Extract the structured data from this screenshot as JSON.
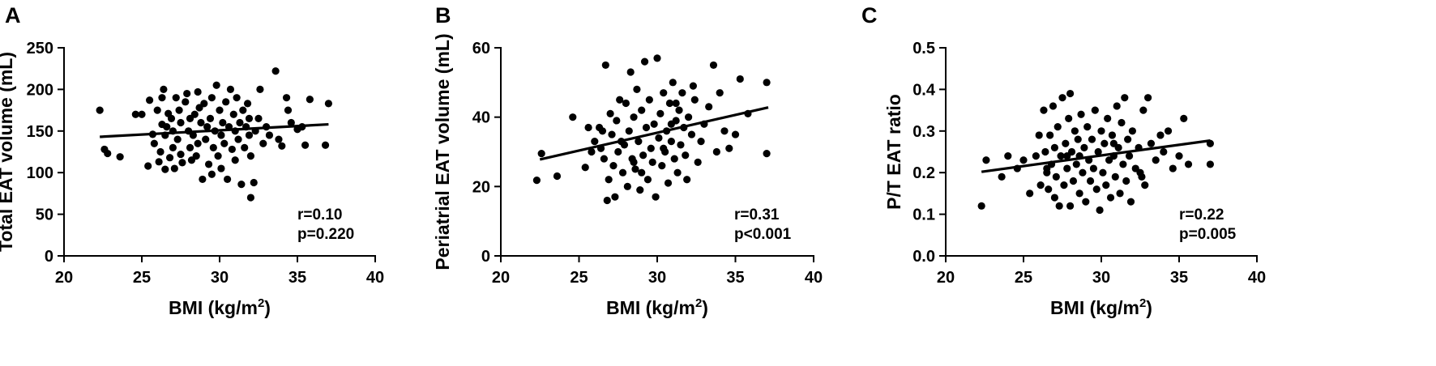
{
  "chart_data": [
    {
      "type": "scatter",
      "panel": "A",
      "xlabel": "BMI (kg/m",
      "xlabel_sup": "2",
      "xlabel_close": ")",
      "ylabel": "Total EAT volume (mL)",
      "xlim": [
        20,
        40
      ],
      "ylim": [
        0,
        250
      ],
      "xticks": [
        "20",
        "25",
        "30",
        "35",
        "40"
      ],
      "yticks": [
        "0",
        "50",
        "100",
        "150",
        "200",
        "250"
      ],
      "stats": [
        "r=0.10",
        "p=0.220"
      ],
      "fit": {
        "x1": 22.3,
        "y1": 143,
        "x2": 37.0,
        "y2": 158
      },
      "points": [
        [
          22.3,
          175
        ],
        [
          22.6,
          128
        ],
        [
          22.8,
          123
        ],
        [
          23.6,
          119
        ],
        [
          24.6,
          170
        ],
        [
          25.0,
          170
        ],
        [
          25.4,
          108
        ],
        [
          25.5,
          187
        ],
        [
          25.7,
          146
        ],
        [
          25.8,
          135
        ],
        [
          26.0,
          175
        ],
        [
          26.1,
          113
        ],
        [
          26.3,
          158
        ],
        [
          26.3,
          190
        ],
        [
          26.4,
          200
        ],
        [
          26.5,
          104
        ],
        [
          26.5,
          145
        ],
        [
          26.6,
          155
        ],
        [
          26.7,
          171
        ],
        [
          26.8,
          118
        ],
        [
          26.9,
          165
        ],
        [
          27.0,
          130
        ],
        [
          27.0,
          150
        ],
        [
          27.1,
          105
        ],
        [
          27.2,
          190
        ],
        [
          27.3,
          140
        ],
        [
          27.4,
          175
        ],
        [
          27.5,
          122
        ],
        [
          27.5,
          160
        ],
        [
          27.6,
          112
        ],
        [
          27.8,
          185
        ],
        [
          27.9,
          195
        ],
        [
          28.0,
          150
        ],
        [
          28.1,
          130
        ],
        [
          28.1,
          165
        ],
        [
          28.2,
          115
        ],
        [
          28.3,
          145
        ],
        [
          28.4,
          170
        ],
        [
          28.5,
          120
        ],
        [
          28.6,
          197
        ],
        [
          28.6,
          135
        ],
        [
          28.8,
          160
        ],
        [
          28.9,
          92
        ],
        [
          29.0,
          183
        ],
        [
          29.1,
          140
        ],
        [
          29.2,
          155
        ],
        [
          29.3,
          110
        ],
        [
          29.4,
          165
        ],
        [
          29.5,
          98
        ],
        [
          29.5,
          190
        ],
        [
          29.6,
          130
        ],
        [
          29.7,
          150
        ],
        [
          29.8,
          205
        ],
        [
          29.9,
          120
        ],
        [
          30.0,
          175
        ],
        [
          30.1,
          105
        ],
        [
          30.1,
          145
        ],
        [
          30.2,
          160
        ],
        [
          30.3,
          135
        ],
        [
          30.4,
          185
        ],
        [
          30.5,
          92
        ],
        [
          30.6,
          155
        ],
        [
          30.7,
          200
        ],
        [
          30.8,
          128
        ],
        [
          30.9,
          170
        ],
        [
          31.0,
          115
        ],
        [
          31.0,
          150
        ],
        [
          31.1,
          190
        ],
        [
          31.2,
          140
        ],
        [
          31.3,
          160
        ],
        [
          31.4,
          86
        ],
        [
          31.5,
          175
        ],
        [
          31.6,
          130
        ],
        [
          31.7,
          155
        ],
        [
          31.8,
          183
        ],
        [
          31.9,
          145
        ],
        [
          32.0,
          120
        ],
        [
          32.0,
          70
        ],
        [
          32.2,
          88
        ],
        [
          32.3,
          150
        ],
        [
          32.5,
          165
        ],
        [
          32.6,
          200
        ],
        [
          32.8,
          135
        ],
        [
          33.0,
          155
        ],
        [
          33.2,
          145
        ],
        [
          33.6,
          222
        ],
        [
          33.8,
          140
        ],
        [
          34.0,
          132
        ],
        [
          34.3,
          190
        ],
        [
          34.4,
          175
        ],
        [
          34.6,
          160
        ],
        [
          35.0,
          152
        ],
        [
          35.3,
          155
        ],
        [
          35.5,
          133
        ],
        [
          35.8,
          188
        ],
        [
          36.8,
          133
        ],
        [
          37.0,
          183
        ],
        [
          26.2,
          125
        ],
        [
          28.7,
          178
        ],
        [
          31.9,
          165
        ]
      ]
    },
    {
      "type": "scatter",
      "panel": "B",
      "xlabel": "BMI (kg/m",
      "xlabel_sup": "2",
      "xlabel_close": ")",
      "ylabel": "Periatrial EAT volume (mL)",
      "xlim": [
        20,
        40
      ],
      "ylim": [
        0,
        60
      ],
      "xticks": [
        "20",
        "25",
        "30",
        "35",
        "40"
      ],
      "yticks": [
        "0",
        "20",
        "40",
        "60"
      ],
      "stats": [
        "r=0.31",
        "p<0.001"
      ],
      "fit": {
        "x1": 22.5,
        "y1": 27.8,
        "x2": 37.1,
        "y2": 42.8
      },
      "points": [
        [
          22.3,
          21.8
        ],
        [
          22.6,
          29.5
        ],
        [
          23.6,
          23
        ],
        [
          24.6,
          40
        ],
        [
          25.4,
          25.5
        ],
        [
          25.8,
          30
        ],
        [
          26.0,
          33
        ],
        [
          26.3,
          37
        ],
        [
          26.4,
          31
        ],
        [
          26.6,
          28
        ],
        [
          26.7,
          55
        ],
        [
          26.8,
          16
        ],
        [
          26.9,
          22
        ],
        [
          27.0,
          41
        ],
        [
          27.1,
          35
        ],
        [
          27.2,
          26
        ],
        [
          27.3,
          17
        ],
        [
          27.4,
          39
        ],
        [
          27.5,
          30
        ],
        [
          27.6,
          45
        ],
        [
          27.8,
          24
        ],
        [
          27.9,
          32
        ],
        [
          28.0,
          44
        ],
        [
          28.1,
          20
        ],
        [
          28.2,
          36
        ],
        [
          28.3,
          53
        ],
        [
          28.4,
          28
        ],
        [
          28.5,
          40
        ],
        [
          28.6,
          25
        ],
        [
          28.7,
          48
        ],
        [
          28.8,
          33
        ],
        [
          28.9,
          19
        ],
        [
          29.0,
          42
        ],
        [
          29.1,
          29
        ],
        [
          29.2,
          56
        ],
        [
          29.3,
          37
        ],
        [
          29.4,
          22
        ],
        [
          29.5,
          45
        ],
        [
          29.6,
          31
        ],
        [
          29.7,
          27
        ],
        [
          29.8,
          38
        ],
        [
          29.9,
          17
        ],
        [
          30.0,
          57
        ],
        [
          30.1,
          34
        ],
        [
          30.2,
          41
        ],
        [
          30.3,
          26
        ],
        [
          30.4,
          47
        ],
        [
          30.5,
          30
        ],
        [
          30.6,
          36
        ],
        [
          30.7,
          21
        ],
        [
          30.8,
          44
        ],
        [
          30.9,
          33
        ],
        [
          31.0,
          50
        ],
        [
          31.1,
          28
        ],
        [
          31.2,
          39
        ],
        [
          31.3,
          24
        ],
        [
          31.4,
          42
        ],
        [
          31.5,
          32
        ],
        [
          31.6,
          47
        ],
        [
          31.7,
          37
        ],
        [
          31.8,
          29
        ],
        [
          31.9,
          22
        ],
        [
          32.0,
          40
        ],
        [
          32.2,
          35
        ],
        [
          32.4,
          45
        ],
        [
          32.6,
          27
        ],
        [
          32.8,
          33
        ],
        [
          33.0,
          38
        ],
        [
          33.3,
          43
        ],
        [
          33.6,
          55
        ],
        [
          33.8,
          30
        ],
        [
          34.0,
          47
        ],
        [
          34.3,
          36
        ],
        [
          34.6,
          31
        ],
        [
          35.0,
          35
        ],
        [
          35.3,
          51
        ],
        [
          35.8,
          41
        ],
        [
          37.0,
          50
        ],
        [
          37.0,
          29.5
        ],
        [
          26.5,
          36
        ],
        [
          27.7,
          33
        ],
        [
          28.5,
          27
        ],
        [
          30.4,
          31
        ],
        [
          31.2,
          44
        ],
        [
          32.3,
          49
        ],
        [
          25.6,
          37
        ],
        [
          29.0,
          24
        ],
        [
          30.9,
          38
        ]
      ]
    },
    {
      "type": "scatter",
      "panel": "C",
      "xlabel": "BMI (kg/m",
      "xlabel_sup": "2",
      "xlabel_close": ")",
      "ylabel": "P/T EAT ratio",
      "xlim": [
        20,
        40
      ],
      "ylim": [
        0,
        0.5
      ],
      "xticks": [
        "20",
        "25",
        "30",
        "35",
        "40"
      ],
      "yticks": [
        "0.0",
        "0.1",
        "0.2",
        "0.3",
        "0.4",
        "0.5"
      ],
      "stats": [
        "r=0.22",
        "p=0.005"
      ],
      "fit": {
        "x1": 22.3,
        "y1": 0.202,
        "x2": 37.0,
        "y2": 0.277
      },
      "points": [
        [
          22.3,
          0.12
        ],
        [
          22.6,
          0.23
        ],
        [
          23.6,
          0.19
        ],
        [
          24.0,
          0.24
        ],
        [
          24.6,
          0.21
        ],
        [
          25.0,
          0.23
        ],
        [
          25.4,
          0.15
        ],
        [
          25.8,
          0.24
        ],
        [
          26.0,
          0.29
        ],
        [
          26.1,
          0.17
        ],
        [
          26.3,
          0.35
        ],
        [
          26.4,
          0.25
        ],
        [
          26.5,
          0.2
        ],
        [
          26.6,
          0.16
        ],
        [
          26.7,
          0.29
        ],
        [
          26.8,
          0.22
        ],
        [
          26.9,
          0.36
        ],
        [
          27.0,
          0.14
        ],
        [
          27.0,
          0.26
        ],
        [
          27.1,
          0.19
        ],
        [
          27.2,
          0.31
        ],
        [
          27.3,
          0.12
        ],
        [
          27.4,
          0.24
        ],
        [
          27.5,
          0.38
        ],
        [
          27.6,
          0.17
        ],
        [
          27.7,
          0.27
        ],
        [
          27.8,
          0.21
        ],
        [
          27.9,
          0.33
        ],
        [
          28.0,
          0.12
        ],
        [
          28.0,
          0.39
        ],
        [
          28.1,
          0.25
        ],
        [
          28.2,
          0.18
        ],
        [
          28.3,
          0.3
        ],
        [
          28.4,
          0.22
        ],
        [
          28.5,
          0.28
        ],
        [
          28.6,
          0.15
        ],
        [
          28.7,
          0.34
        ],
        [
          28.8,
          0.2
        ],
        [
          28.9,
          0.26
        ],
        [
          29.0,
          0.13
        ],
        [
          29.1,
          0.31
        ],
        [
          29.2,
          0.23
        ],
        [
          29.3,
          0.18
        ],
        [
          29.4,
          0.28
        ],
        [
          29.5,
          0.21
        ],
        [
          29.6,
          0.35
        ],
        [
          29.7,
          0.16
        ],
        [
          29.8,
          0.25
        ],
        [
          29.9,
          0.11
        ],
        [
          30.0,
          0.3
        ],
        [
          30.1,
          0.2
        ],
        [
          30.2,
          0.27
        ],
        [
          30.3,
          0.17
        ],
        [
          30.4,
          0.33
        ],
        [
          30.5,
          0.23
        ],
        [
          30.6,
          0.14
        ],
        [
          30.7,
          0.29
        ],
        [
          30.8,
          0.24
        ],
        [
          30.9,
          0.19
        ],
        [
          31.0,
          0.36
        ],
        [
          31.1,
          0.26
        ],
        [
          31.2,
          0.15
        ],
        [
          31.3,
          0.32
        ],
        [
          31.4,
          0.22
        ],
        [
          31.5,
          0.38
        ],
        [
          31.6,
          0.18
        ],
        [
          31.7,
          0.28
        ],
        [
          31.8,
          0.24
        ],
        [
          31.9,
          0.13
        ],
        [
          32.0,
          0.3
        ],
        [
          32.2,
          0.21
        ],
        [
          32.4,
          0.26
        ],
        [
          32.6,
          0.19
        ],
        [
          32.7,
          0.35
        ],
        [
          32.8,
          0.17
        ],
        [
          33.0,
          0.38
        ],
        [
          33.2,
          0.27
        ],
        [
          33.5,
          0.23
        ],
        [
          33.8,
          0.29
        ],
        [
          34.0,
          0.25
        ],
        [
          34.3,
          0.3
        ],
        [
          34.6,
          0.21
        ],
        [
          35.0,
          0.24
        ],
        [
          35.3,
          0.33
        ],
        [
          35.6,
          0.22
        ],
        [
          37.0,
          0.27
        ],
        [
          37.0,
          0.22
        ],
        [
          26.5,
          0.21
        ],
        [
          28.6,
          0.24
        ],
        [
          30.8,
          0.27
        ],
        [
          32.5,
          0.2
        ],
        [
          27.8,
          0.24
        ]
      ]
    }
  ]
}
